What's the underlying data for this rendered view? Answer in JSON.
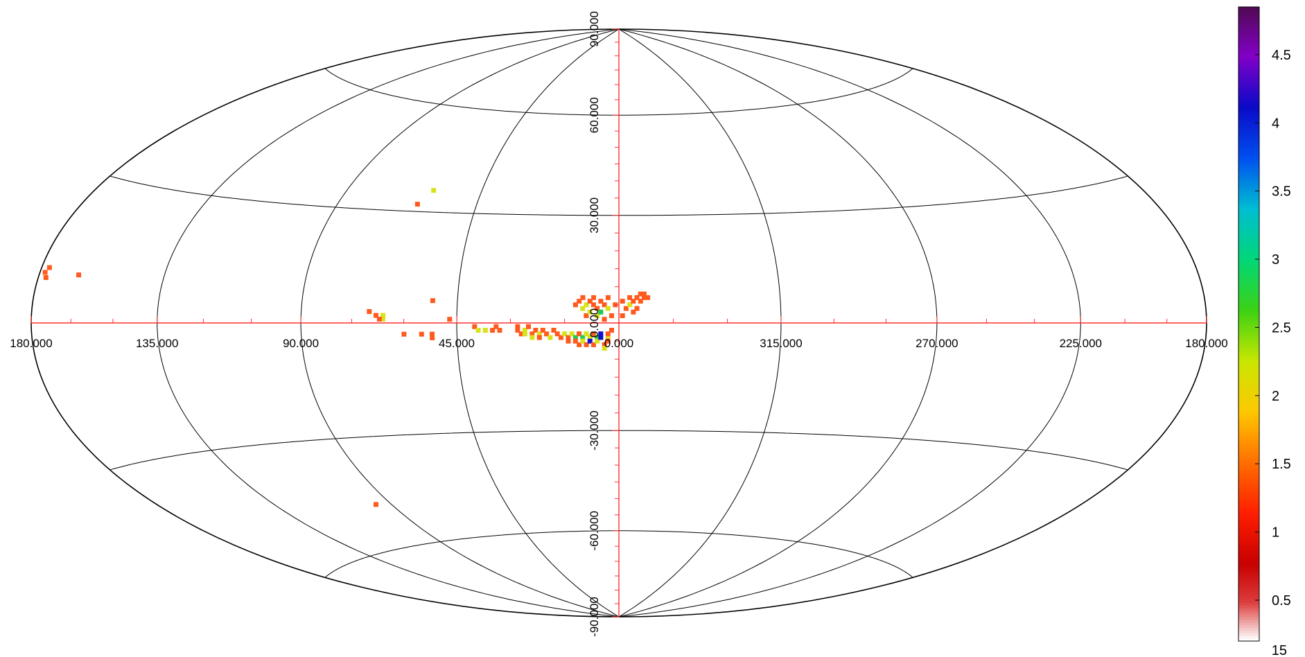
{
  "chart_data": {
    "type": "heatmap",
    "projection": "aitoff-hammer all-sky",
    "grid": true,
    "lon_ticks": [
      {
        "lon": 180,
        "label": "180.000"
      },
      {
        "lon": 135,
        "label": "135.000"
      },
      {
        "lon": 90,
        "label": "90.000"
      },
      {
        "lon": 45,
        "label": "45.000"
      },
      {
        "lon": 0,
        "label": "0.000"
      },
      {
        "lon": -45,
        "label": "315.000"
      },
      {
        "lon": -90,
        "label": "270.000"
      },
      {
        "lon": -135,
        "label": "225.000"
      },
      {
        "lon": -180,
        "label": "180.000"
      }
    ],
    "lat_ticks": [
      {
        "lat": 90,
        "label": "90.000"
      },
      {
        "lat": 60,
        "label": "60.000"
      },
      {
        "lat": 30,
        "label": "30.000"
      },
      {
        "lat": 0,
        "label": "0.000"
      },
      {
        "lat": -30,
        "label": "-30.000"
      },
      {
        "lat": -60,
        "label": "-60.000"
      },
      {
        "lat": -90,
        "label": "-90.000"
      }
    ],
    "colorbar": {
      "min": 0.2,
      "max": 4.85,
      "ticks": [
        "4.5",
        "4",
        "3.5",
        "3",
        "2.5",
        "2",
        "1.5",
        "1",
        "0.5"
      ],
      "tick_values": [
        4.5,
        4,
        3.5,
        3,
        2.5,
        2,
        1.5,
        1,
        0.5
      ],
      "footer": "15"
    },
    "colors": {
      "grid": "#000000",
      "axis": "#ff3030",
      "low": "#ff5a1e",
      "mid": "#d8e21a",
      "high": "#25c84a",
      "max": "#1010c8"
    },
    "pixels": [
      {
        "lon": 178,
        "lat": 10,
        "v": 1.1
      },
      {
        "lon": 177,
        "lat": 11,
        "v": 1.1
      },
      {
        "lon": 177,
        "lat": 9,
        "v": 1.1
      },
      {
        "lon": 165,
        "lat": 10,
        "v": 1.1
      },
      {
        "lon": 61,
        "lat": 36,
        "v": 2.0
      },
      {
        "lon": 64,
        "lat": 32,
        "v": 1.1
      },
      {
        "lon": 52,
        "lat": 6,
        "v": 1.1
      },
      {
        "lon": 96,
        "lat": -48,
        "v": 1.1
      },
      {
        "lon": 70,
        "lat": 3,
        "v": 1.1
      },
      {
        "lon": 68,
        "lat": 2,
        "v": 1.1
      },
      {
        "lon": 66,
        "lat": 2,
        "v": 2.0
      },
      {
        "lon": 66,
        "lat": 1,
        "v": 2.0
      },
      {
        "lon": 67,
        "lat": 1,
        "v": 1.1
      },
      {
        "lon": 47,
        "lat": 1,
        "v": 1.1
      },
      {
        "lon": 60,
        "lat": -3,
        "v": 1.1
      },
      {
        "lon": 55,
        "lat": -3,
        "v": 1.1
      },
      {
        "lon": 52,
        "lat": -3,
        "v": 1.1
      },
      {
        "lon": 52,
        "lat": -4,
        "v": 1.1
      },
      {
        "lon": 40,
        "lat": -1,
        "v": 1.1
      },
      {
        "lon": 39,
        "lat": -2,
        "v": 2.0
      },
      {
        "lon": 37,
        "lat": -2,
        "v": 2.0
      },
      {
        "lon": 35,
        "lat": -2,
        "v": 1.1
      },
      {
        "lon": 34,
        "lat": -1,
        "v": 1.1
      },
      {
        "lon": 33,
        "lat": -2,
        "v": 1.1
      },
      {
        "lon": 28,
        "lat": -1,
        "v": 1.1
      },
      {
        "lon": 28,
        "lat": -2,
        "v": 1.1
      },
      {
        "lon": 27,
        "lat": -3,
        "v": 1.1
      },
      {
        "lon": 26,
        "lat": -2,
        "v": 1.6
      },
      {
        "lon": 26,
        "lat": -3,
        "v": 1.6
      },
      {
        "lon": 25,
        "lat": -1,
        "v": 1.1
      },
      {
        "lon": 24,
        "lat": -3,
        "v": 1.1
      },
      {
        "lon": 24,
        "lat": -4,
        "v": 2.0
      },
      {
        "lon": 23,
        "lat": -2,
        "v": 1.1
      },
      {
        "lon": 22,
        "lat": -3,
        "v": 1.6
      },
      {
        "lon": 22,
        "lat": -4,
        "v": 1.1
      },
      {
        "lon": 21,
        "lat": -2,
        "v": 1.1
      },
      {
        "lon": 20,
        "lat": -3,
        "v": 1.1
      },
      {
        "lon": 19,
        "lat": -4,
        "v": 2.0
      },
      {
        "lon": 18,
        "lat": -2,
        "v": 1.1
      },
      {
        "lon": 17,
        "lat": -3,
        "v": 1.1
      },
      {
        "lon": 16,
        "lat": -4,
        "v": 1.1
      },
      {
        "lon": 15,
        "lat": -3,
        "v": 1.6
      },
      {
        "lon": 14,
        "lat": -4,
        "v": 1.1
      },
      {
        "lon": 14,
        "lat": -5,
        "v": 1.1
      },
      {
        "lon": 13,
        "lat": -3,
        "v": 2.0
      },
      {
        "lon": 12,
        "lat": -4,
        "v": 2.7
      },
      {
        "lon": 12,
        "lat": -5,
        "v": 1.1
      },
      {
        "lon": 11,
        "lat": -3,
        "v": 1.1
      },
      {
        "lon": 11,
        "lat": -6,
        "v": 1.1
      },
      {
        "lon": 10,
        "lat": -4,
        "v": 3.4
      },
      {
        "lon": 10,
        "lat": -5,
        "v": 2.0
      },
      {
        "lon": 9,
        "lat": -3,
        "v": 1.6
      },
      {
        "lon": 9,
        "lat": -6,
        "v": 1.1
      },
      {
        "lon": 8,
        "lat": -4,
        "v": 2.0
      },
      {
        "lon": 8,
        "lat": -5,
        "v": 4.2
      },
      {
        "lon": 7,
        "lat": -3,
        "v": 1.1
      },
      {
        "lon": 7,
        "lat": -6,
        "v": 1.1
      },
      {
        "lon": 6,
        "lat": -4,
        "v": 2.7
      },
      {
        "lon": 6,
        "lat": -5,
        "v": 1.6
      },
      {
        "lon": 5,
        "lat": -3,
        "v": 4.6
      },
      {
        "lon": 5,
        "lat": -4,
        "v": 4.3
      },
      {
        "lon": 4,
        "lat": -6,
        "v": 1.1
      },
      {
        "lon": 4,
        "lat": -7,
        "v": 1.6
      },
      {
        "lon": 3,
        "lat": -4,
        "v": 1.6
      },
      {
        "lon": 3,
        "lat": -5,
        "v": 1.1
      },
      {
        "lon": 3,
        "lat": -3,
        "v": 1.1
      },
      {
        "lon": 2,
        "lat": -2,
        "v": 1.1
      },
      {
        "lon": 12,
        "lat": 5,
        "v": 1.1
      },
      {
        "lon": 11,
        "lat": 6,
        "v": 1.1
      },
      {
        "lon": 10,
        "lat": 4,
        "v": 1.6
      },
      {
        "lon": 10,
        "lat": 7,
        "v": 1.1
      },
      {
        "lon": 9,
        "lat": 5,
        "v": 2.0
      },
      {
        "lon": 9,
        "lat": 2,
        "v": 1.1
      },
      {
        "lon": 8,
        "lat": 6,
        "v": 1.1
      },
      {
        "lon": 8,
        "lat": 3,
        "v": 2.0
      },
      {
        "lon": 7,
        "lat": 5,
        "v": 1.1
      },
      {
        "lon": 7,
        "lat": 7,
        "v": 1.1
      },
      {
        "lon": 6,
        "lat": 4,
        "v": 1.1
      },
      {
        "lon": 6,
        "lat": 2,
        "v": 1.6
      },
      {
        "lon": 5,
        "lat": 6,
        "v": 1.1
      },
      {
        "lon": 5,
        "lat": 3,
        "v": 2.7
      },
      {
        "lon": 4,
        "lat": 5,
        "v": 1.1
      },
      {
        "lon": 4,
        "lat": 1,
        "v": 1.1
      },
      {
        "lon": 3,
        "lat": 4,
        "v": 1.6
      },
      {
        "lon": 3,
        "lat": 7,
        "v": 1.1
      },
      {
        "lon": 2,
        "lat": 2,
        "v": 1.1
      },
      {
        "lon": 1,
        "lat": 5,
        "v": 1.1
      },
      {
        "lon": -1,
        "lat": 6,
        "v": 1.1
      },
      {
        "lon": -1,
        "lat": 2,
        "v": 1.1
      },
      {
        "lon": -2,
        "lat": 4,
        "v": 1.1
      },
      {
        "lon": -3,
        "lat": 7,
        "v": 1.1
      },
      {
        "lon": -3,
        "lat": 5,
        "v": 2.0
      },
      {
        "lon": -4,
        "lat": 3,
        "v": 1.1
      },
      {
        "lon": -4,
        "lat": 6,
        "v": 1.1
      },
      {
        "lon": -5,
        "lat": 7,
        "v": 1.1
      },
      {
        "lon": -5,
        "lat": 4,
        "v": 1.1
      },
      {
        "lon": -6,
        "lat": 6,
        "v": 1.1
      },
      {
        "lon": -7,
        "lat": 7,
        "v": 1.1
      },
      {
        "lon": -7,
        "lat": 8,
        "v": 1.1
      },
      {
        "lon": -8,
        "lat": 7,
        "v": 1.1
      },
      {
        "lon": -6,
        "lat": 8,
        "v": 1.1
      }
    ]
  }
}
